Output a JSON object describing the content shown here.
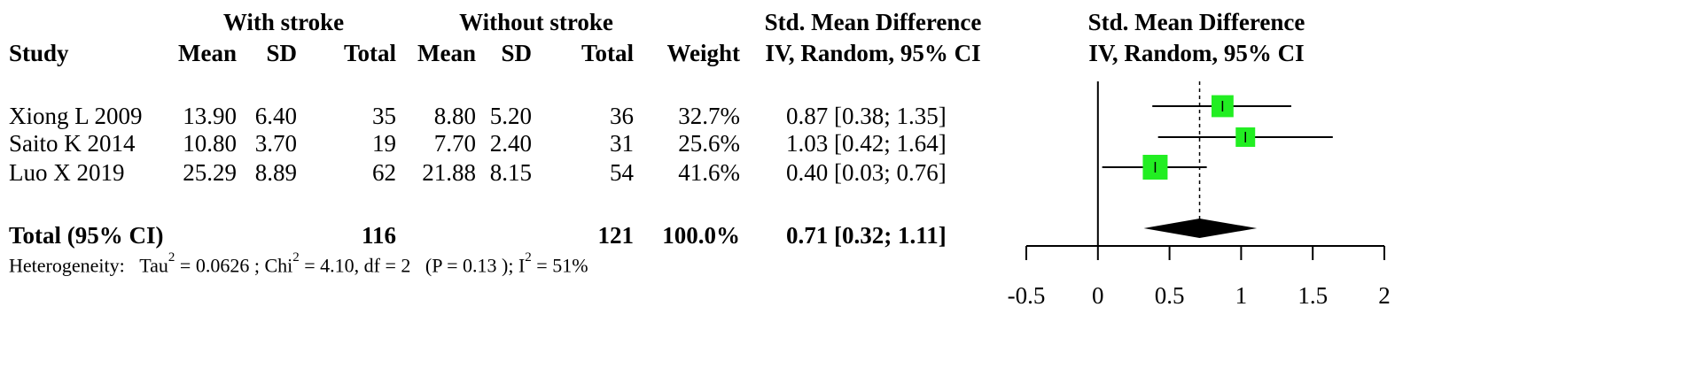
{
  "headers": {
    "group1": "With stroke",
    "group2": "Without stroke",
    "smd_top": "Std. Mean Difference",
    "smd_bottom": "IV, Random, 95% CI",
    "plot_top": "Std. Mean Difference",
    "plot_bottom": "IV, Random, 95% CI",
    "study": "Study",
    "mean1": "Mean",
    "sd1": "SD",
    "total1": "Total",
    "mean2": "Mean",
    "sd2": "SD",
    "total2": "Total",
    "weight": "Weight"
  },
  "studies": [
    {
      "name": "Xiong L 2009",
      "mean1": "13.90",
      "sd1": "6.40",
      "total1": "35",
      "mean2": "8.80",
      "sd2": "5.20",
      "total2": "36",
      "weight": "32.7%",
      "ci": "0.87 [0.38; 1.35]"
    },
    {
      "name": "Saito K 2014",
      "mean1": "10.80",
      "sd1": "3.70",
      "total1": "19",
      "mean2": "7.70",
      "sd2": "2.40",
      "total2": "31",
      "weight": "25.6%",
      "ci": "1.03 [0.42; 1.64]"
    },
    {
      "name": "Luo X 2019",
      "mean1": "25.29",
      "sd1": "8.89",
      "total1": "62",
      "mean2": "21.88",
      "sd2": "8.15",
      "total2": "54",
      "weight": "41.6%",
      "ci": "0.40 [0.03; 0.76]"
    }
  ],
  "total": {
    "label": "Total (95% CI)",
    "total1": "116",
    "total2": "121",
    "weight": "100.0%",
    "ci": "0.71 [0.32; 1.11]"
  },
  "heterogeneity": {
    "label": "Heterogeneity:",
    "tau_prefix": "Tau",
    "tau_value": " = 0.0626",
    "chi_prefix": " ; Chi",
    "chi_value": " = 4.10, df = 2",
    "p_text": "(P = 0.13 );",
    "i_prefix": " I",
    "i_value": " = 51%",
    "sup": "2"
  },
  "chart_data": {
    "type": "scatter",
    "title": "",
    "xlim": [
      -0.5,
      2
    ],
    "x_ticks": [
      "-0.5",
      "0",
      "0.5",
      "1",
      "1.5",
      "2"
    ],
    "x_tick_values": [
      -0.5,
      0,
      0.5,
      1,
      1.5,
      2
    ],
    "null_line": 0,
    "pooled_line": 0.71,
    "studies": [
      {
        "name": "Xiong L 2009",
        "estimate": 0.87,
        "lower": 0.38,
        "upper": 1.35,
        "weight": 32.7
      },
      {
        "name": "Saito K 2014",
        "estimate": 1.03,
        "lower": 0.42,
        "upper": 1.64,
        "weight": 25.6
      },
      {
        "name": "Luo X 2019",
        "estimate": 0.4,
        "lower": 0.03,
        "upper": 0.76,
        "weight": 41.6
      }
    ],
    "pooled": {
      "estimate": 0.71,
      "lower": 0.32,
      "upper": 1.11
    },
    "marker_color": "#22ee22",
    "diamond_color": "#000000"
  }
}
